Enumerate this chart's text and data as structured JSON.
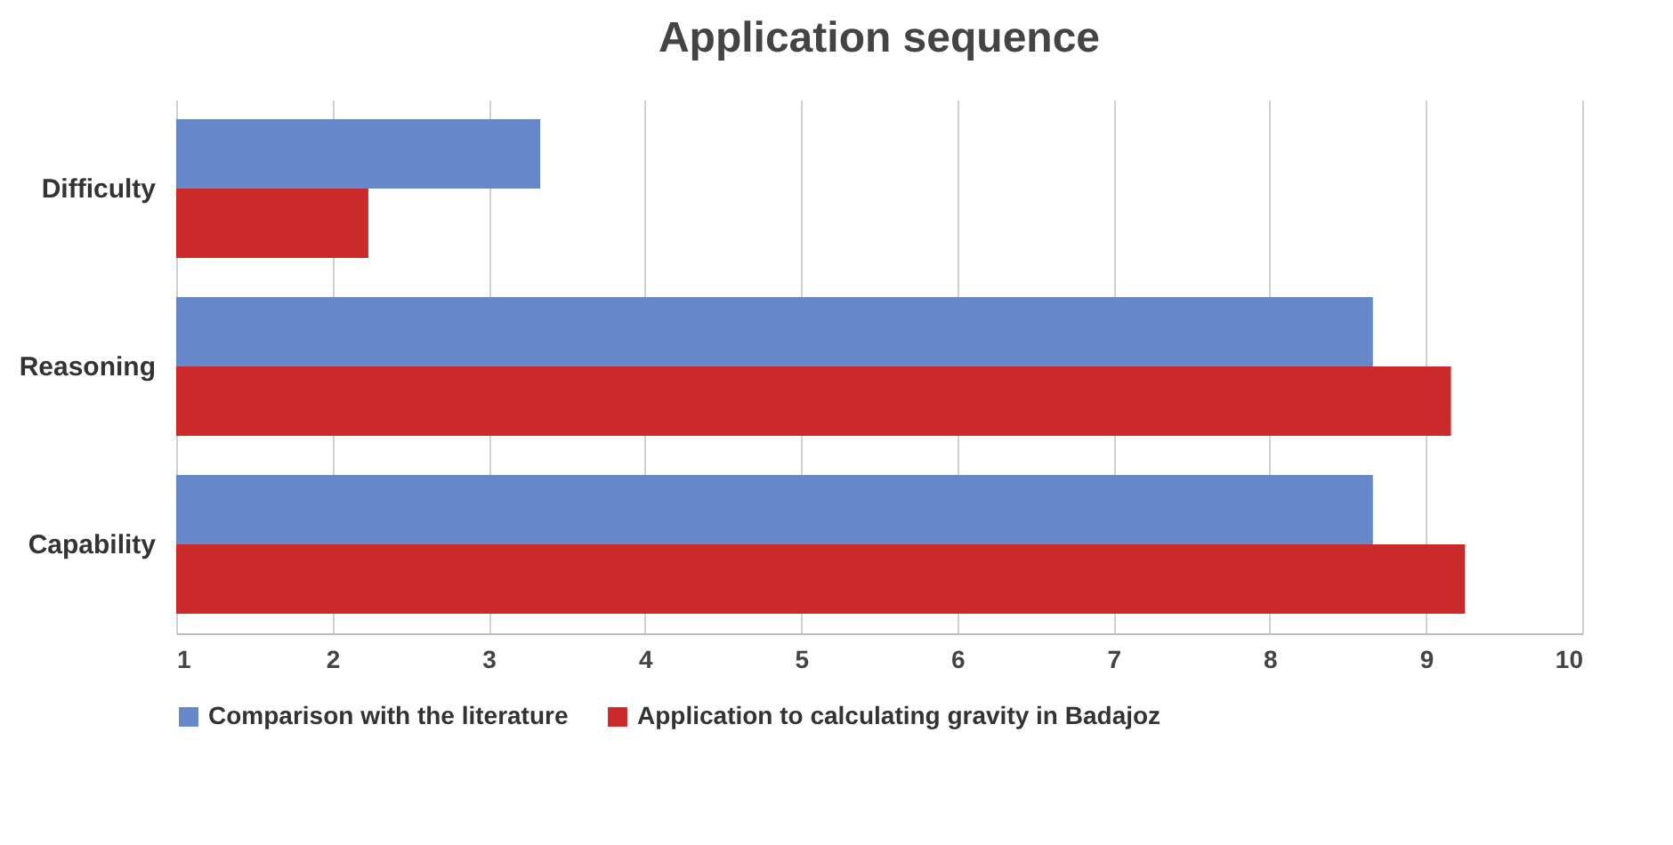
{
  "chart_data": {
    "type": "bar",
    "orientation": "horizontal",
    "title": "Application sequence",
    "categories": [
      "Difficulty",
      "Reasoning",
      "Capability"
    ],
    "series": [
      {
        "name": "Comparison with the literature",
        "color": "#6687c9",
        "values": [
          3.33,
          8.66,
          8.66
        ]
      },
      {
        "name": "Application to calculating gravity in Badajoz",
        "color": "#cb2a2a",
        "values": [
          2.23,
          9.16,
          9.25
        ]
      }
    ],
    "xlim": [
      1,
      10
    ],
    "xticks": [
      1,
      2,
      3,
      4,
      5,
      6,
      7,
      8,
      9,
      10
    ],
    "grid": "x",
    "legend": "bottom"
  }
}
